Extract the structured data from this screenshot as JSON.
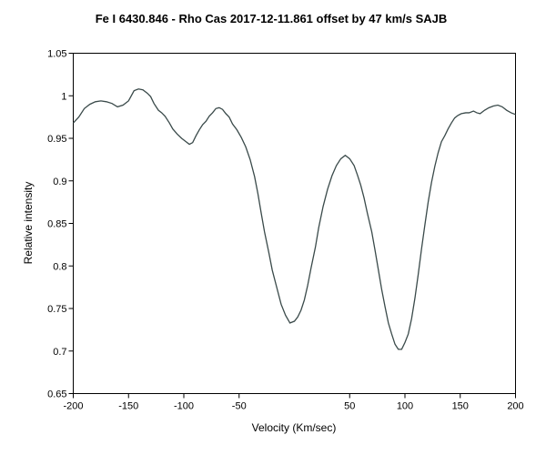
{
  "chart_data": {
    "type": "line",
    "title": "Fe I 6430.846 - Rho Cas   2017-12-11.861   offset by 47 km/s   SAJB",
    "xlabel": "Velocity (Km/sec)",
    "ylabel": "Relative intensity",
    "xlim": [
      -200,
      200
    ],
    "ylim": [
      0.65,
      1.05
    ],
    "xticks": [
      -200,
      -150,
      -100,
      -50,
      50,
      100,
      150,
      200
    ],
    "xtick_labels": [
      "-200",
      "-150",
      "-100",
      "-50",
      "50",
      "100",
      "150",
      "200"
    ],
    "yticks": [
      0.65,
      0.7,
      0.75,
      0.8,
      0.85,
      0.9,
      0.95,
      1,
      1.05
    ],
    "ytick_labels": [
      "0.65",
      "0.7",
      "0.75",
      "0.8",
      "0.85",
      "0.9",
      "0.95",
      "1",
      "1.05"
    ],
    "grid": false,
    "line_color": "#3a4a4a",
    "series": [
      {
        "x": [
          -200,
          -195,
          -190,
          -185,
          -180,
          -175,
          -170,
          -165,
          -160,
          -155,
          -150,
          -145,
          -141,
          -137,
          -133,
          -130,
          -127,
          -123,
          -120,
          -117,
          -113,
          -110,
          -106,
          -102,
          -98,
          -95,
          -92,
          -89,
          -86,
          -83,
          -80,
          -77,
          -74,
          -71,
          -68,
          -65,
          -62,
          -59,
          -56,
          -52,
          -48,
          -44,
          -40,
          -36,
          -33,
          -30,
          -27,
          -23,
          -20,
          -16,
          -12,
          -8,
          -4,
          0,
          3,
          6,
          9,
          12,
          15,
          19,
          22,
          26,
          30,
          34,
          38,
          42,
          46,
          50,
          54,
          57,
          60,
          63,
          66,
          70,
          73,
          76,
          79,
          82,
          85,
          88,
          91,
          94,
          97,
          100,
          103,
          106,
          109,
          112,
          115,
          118,
          121,
          124,
          127,
          130,
          133,
          136,
          139,
          142,
          145,
          148,
          151,
          155,
          158,
          162,
          165,
          168,
          172,
          176,
          180,
          184,
          188,
          192,
          196,
          200
        ],
        "y": [
          0.968,
          0.975,
          0.985,
          0.99,
          0.993,
          0.994,
          0.993,
          0.991,
          0.987,
          0.989,
          0.994,
          1.006,
          1.008,
          1.007,
          1.003,
          0.999,
          0.991,
          0.983,
          0.98,
          0.976,
          0.968,
          0.961,
          0.955,
          0.95,
          0.946,
          0.943,
          0.945,
          0.953,
          0.96,
          0.966,
          0.97,
          0.976,
          0.98,
          0.985,
          0.986,
          0.984,
          0.979,
          0.975,
          0.967,
          0.96,
          0.951,
          0.94,
          0.925,
          0.905,
          0.885,
          0.862,
          0.84,
          0.815,
          0.795,
          0.775,
          0.755,
          0.742,
          0.733,
          0.735,
          0.74,
          0.748,
          0.76,
          0.777,
          0.797,
          0.822,
          0.845,
          0.87,
          0.89,
          0.906,
          0.918,
          0.926,
          0.93,
          0.926,
          0.918,
          0.907,
          0.895,
          0.88,
          0.862,
          0.84,
          0.818,
          0.795,
          0.772,
          0.752,
          0.733,
          0.72,
          0.708,
          0.702,
          0.702,
          0.71,
          0.72,
          0.738,
          0.762,
          0.79,
          0.82,
          0.848,
          0.875,
          0.898,
          0.917,
          0.933,
          0.946,
          0.953,
          0.961,
          0.968,
          0.974,
          0.977,
          0.979,
          0.98,
          0.98,
          0.982,
          0.98,
          0.979,
          0.983,
          0.986,
          0.988,
          0.989,
          0.987,
          0.983,
          0.98,
          0.978
        ]
      }
    ]
  }
}
